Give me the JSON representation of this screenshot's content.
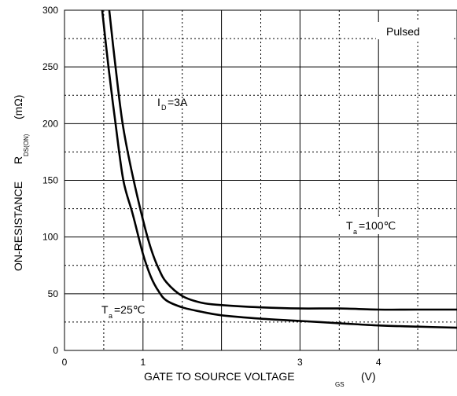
{
  "chart_data": {
    "type": "line",
    "xlabel_main": "GATE TO SOURCE VOLTAGE",
    "xlabel_sub": "GS",
    "xlabel_unit": "(V)",
    "ylabel_main": "ON-RESISTANCE",
    "ylabel_symbol": "R",
    "ylabel_sub": "DS(ON)",
    "ylabel_unit": "(mΩ)",
    "xlim": [
      0,
      5
    ],
    "ylim": [
      0,
      300
    ],
    "x_ticks": [
      "0",
      "1",
      "3",
      "4"
    ],
    "y_ticks": [
      "0",
      "50",
      "100",
      "150",
      "200",
      "250",
      "300"
    ],
    "minor_grid": "dotted",
    "annotations": {
      "pulsed": "Pulsed",
      "id_prefix": "I",
      "id_sub": "D",
      "id_value": "=3A",
      "ta100_prefix": "T",
      "ta100_sub": "a",
      "ta100_value": "=100℃",
      "ta25_prefix": "T",
      "ta25_sub": "a",
      "ta25_value": "=25℃"
    },
    "series": [
      {
        "name": "Ta=100℃",
        "points": [
          [
            0.57,
            300
          ],
          [
            0.65,
            250
          ],
          [
            0.74,
            200
          ],
          [
            0.85,
            160
          ],
          [
            1.0,
            115
          ],
          [
            1.1,
            90
          ],
          [
            1.2,
            72
          ],
          [
            1.3,
            60
          ],
          [
            1.5,
            48
          ],
          [
            1.75,
            42
          ],
          [
            2.0,
            40
          ],
          [
            2.5,
            38
          ],
          [
            3.0,
            37
          ],
          [
            3.5,
            37
          ],
          [
            4.0,
            36
          ],
          [
            4.5,
            36
          ],
          [
            5.0,
            36
          ]
        ]
      },
      {
        "name": "Ta=25℃",
        "points": [
          [
            0.48,
            300
          ],
          [
            0.56,
            250
          ],
          [
            0.65,
            200
          ],
          [
            0.75,
            150
          ],
          [
            0.87,
            120
          ],
          [
            1.0,
            85
          ],
          [
            1.1,
            65
          ],
          [
            1.2,
            52
          ],
          [
            1.3,
            44
          ],
          [
            1.5,
            38
          ],
          [
            1.75,
            34
          ],
          [
            2.0,
            31
          ],
          [
            2.5,
            28
          ],
          [
            3.0,
            26
          ],
          [
            3.5,
            24
          ],
          [
            4.0,
            22
          ],
          [
            4.5,
            21
          ],
          [
            5.0,
            20
          ]
        ]
      }
    ]
  }
}
